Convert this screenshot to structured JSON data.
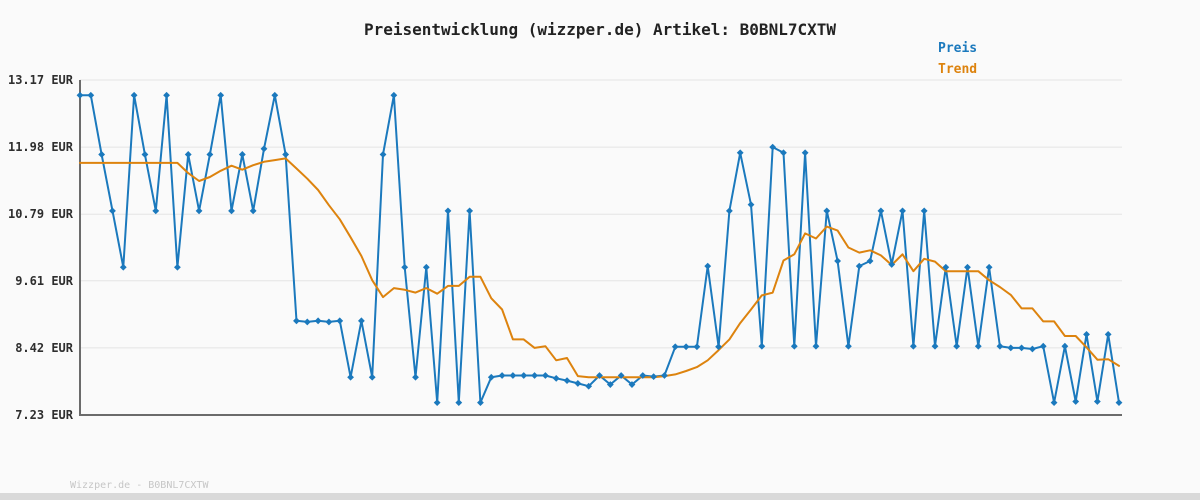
{
  "page": {
    "title": "Preisentwicklung (wizzper.de) Artikel: B0BNL7CXTW",
    "watermark": "Wizzper.de - B0BNL7CXTW"
  },
  "legend": {
    "items": [
      {
        "label": "Preis",
        "color": "#1b79bd"
      },
      {
        "label": "Trend",
        "color": "#dd830e"
      }
    ]
  },
  "chart_data": {
    "type": "line",
    "title": "Preisentwicklung (wizzper.de) Artikel: B0BNL7CXTW",
    "unit": "EUR",
    "xlabel": "",
    "ylabel": "",
    "ylim": [
      7.23,
      13.17
    ],
    "y_ticks": [
      "13.17 EUR",
      "11.98 EUR",
      "10.79 EUR",
      "9.61 EUR",
      "8.42 EUR",
      "7.23 EUR"
    ],
    "y_tick_values": [
      13.17,
      11.98,
      10.79,
      9.61,
      8.42,
      7.23
    ],
    "grid": "horizontal",
    "x_axis_tick_labels": "none",
    "legend_position": "top-right",
    "series": [
      {
        "name": "Preis",
        "color": "#1b79bd",
        "marker": "diamond",
        "values": [
          12.9,
          12.9,
          11.85,
          10.85,
          9.85,
          12.9,
          11.85,
          10.85,
          12.9,
          9.85,
          11.85,
          10.85,
          11.85,
          12.9,
          10.85,
          11.85,
          10.85,
          11.95,
          12.9,
          11.85,
          8.9,
          8.88,
          8.9,
          8.88,
          8.9,
          7.9,
          8.9,
          7.9,
          11.85,
          12.9,
          9.85,
          7.9,
          9.85,
          7.45,
          10.85,
          7.45,
          10.85,
          7.45,
          7.9,
          7.93,
          7.93,
          7.93,
          7.93,
          7.93,
          7.88,
          7.84,
          7.79,
          7.74,
          7.93,
          7.77,
          7.93,
          7.77,
          7.93,
          7.91,
          7.93,
          8.44,
          8.44,
          8.44,
          9.87,
          8.44,
          10.85,
          11.88,
          10.96,
          8.45,
          11.98,
          11.88,
          8.45,
          11.88,
          8.45,
          10.85,
          9.96,
          8.45,
          9.87,
          9.96,
          10.85,
          9.9,
          10.85,
          8.45,
          10.85,
          8.45,
          9.85,
          8.45,
          9.85,
          8.45,
          9.85,
          8.45,
          8.42,
          8.42,
          8.4,
          8.45,
          7.45,
          8.45,
          7.47,
          8.66,
          7.47,
          8.66,
          7.45
        ]
      },
      {
        "name": "Trend",
        "color": "#dd830e",
        "marker": "none",
        "values": [
          11.7,
          11.7,
          11.7,
          11.7,
          11.7,
          11.7,
          11.7,
          11.7,
          11.7,
          11.7,
          11.52,
          11.38,
          11.45,
          11.56,
          11.65,
          11.58,
          11.66,
          11.72,
          11.75,
          11.78,
          11.6,
          11.42,
          11.22,
          10.95,
          10.7,
          10.38,
          10.05,
          9.62,
          9.32,
          9.48,
          9.45,
          9.4,
          9.48,
          9.38,
          9.52,
          9.52,
          9.68,
          9.68,
          9.3,
          9.1,
          8.57,
          8.57,
          8.42,
          8.45,
          8.2,
          8.24,
          7.92,
          7.9,
          7.9,
          7.9,
          7.9,
          7.9,
          7.9,
          7.9,
          7.92,
          7.95,
          8.01,
          8.08,
          8.2,
          8.38,
          8.57,
          8.86,
          9.1,
          9.35,
          9.4,
          9.97,
          10.08,
          10.45,
          10.36,
          10.57,
          10.5,
          10.2,
          10.11,
          10.15,
          10.06,
          9.89,
          10.08,
          9.78,
          10.0,
          9.95,
          9.78,
          9.78,
          9.78,
          9.78,
          9.62,
          9.5,
          9.36,
          9.12,
          9.12,
          8.89,
          8.89,
          8.63,
          8.63,
          8.43,
          8.21,
          8.22,
          8.1
        ]
      }
    ]
  }
}
